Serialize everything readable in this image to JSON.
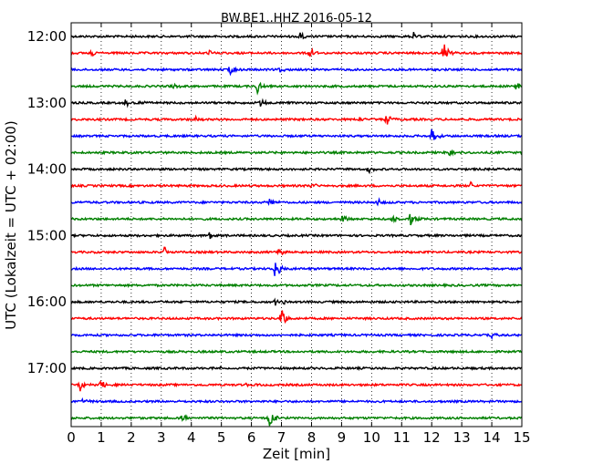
{
  "chart_data": {
    "type": "line",
    "title": "BW.BE1..HHZ 2016-05-12",
    "xlabel": "Zeit  [min]",
    "ylabel": "UTC (Lokalzeit = UTC + 02:00)",
    "xlim": [
      0,
      15
    ],
    "x_ticks": [
      "0",
      "1",
      "2",
      "3",
      "4",
      "5",
      "6",
      "7",
      "8",
      "9",
      "10",
      "11",
      "12",
      "13",
      "14",
      "15"
    ],
    "grid": "vertical dotted",
    "row_interval_min": 15,
    "start_time": "12:00",
    "y_tick_labels": [
      "12:00",
      "13:00",
      "14:00",
      "15:00",
      "16:00",
      "17:00"
    ],
    "colors": [
      "#000000",
      "#ff0000",
      "#0000ff",
      "#008000"
    ],
    "traces": [
      {
        "time": "12:00",
        "events": [
          {
            "t": 7.6,
            "amp": 0.35
          },
          {
            "t": 11.4,
            "amp": 0.3
          }
        ]
      },
      {
        "time": "12:15",
        "events": [
          {
            "t": 0.7,
            "amp": 0.25
          },
          {
            "t": 4.6,
            "amp": 0.2
          },
          {
            "t": 7.9,
            "amp": 0.7
          },
          {
            "t": 12.4,
            "amp": 0.8
          }
        ]
      },
      {
        "time": "12:30",
        "events": [
          {
            "t": 5.3,
            "amp": 0.55
          },
          {
            "t": 6.9,
            "amp": 0.3
          }
        ]
      },
      {
        "time": "12:45",
        "events": [
          {
            "t": 3.4,
            "amp": 0.3
          },
          {
            "t": 6.2,
            "amp": 0.6
          },
          {
            "t": 14.8,
            "amp": 0.6
          }
        ]
      },
      {
        "time": "13:00",
        "events": [
          {
            "t": 1.8,
            "amp": 0.3
          },
          {
            "t": 2.2,
            "amp": 0.3
          },
          {
            "t": 6.3,
            "amp": 0.3
          }
        ]
      },
      {
        "time": "13:15",
        "events": [
          {
            "t": 4.1,
            "amp": 0.25
          },
          {
            "t": 9.6,
            "amp": 0.25
          },
          {
            "t": 10.5,
            "amp": 0.5
          }
        ]
      },
      {
        "time": "13:30",
        "events": [
          {
            "t": 12.0,
            "amp": 0.7
          }
        ]
      },
      {
        "time": "13:45",
        "events": [
          {
            "t": 12.6,
            "amp": 0.25
          }
        ]
      },
      {
        "time": "14:00",
        "events": [
          {
            "t": 9.9,
            "amp": 0.3
          }
        ]
      },
      {
        "time": "14:15",
        "events": [
          {
            "t": 8.0,
            "amp": 0.3
          },
          {
            "t": 13.3,
            "amp": 0.3
          }
        ]
      },
      {
        "time": "14:30",
        "events": [
          {
            "t": 6.6,
            "amp": 0.3
          },
          {
            "t": 10.2,
            "amp": 0.3
          }
        ]
      },
      {
        "time": "14:45",
        "events": [
          {
            "t": 9.0,
            "amp": 0.35
          },
          {
            "t": 10.7,
            "amp": 0.3
          },
          {
            "t": 11.3,
            "amp": 0.55
          }
        ]
      },
      {
        "time": "15:00",
        "events": [
          {
            "t": 4.6,
            "amp": 0.3
          }
        ]
      },
      {
        "time": "15:15",
        "events": [
          {
            "t": 3.1,
            "amp": 0.45
          },
          {
            "t": 6.9,
            "amp": 0.3
          }
        ]
      },
      {
        "time": "15:30",
        "events": [
          {
            "t": 6.8,
            "amp": 1.0
          }
        ]
      },
      {
        "time": "15:45",
        "events": []
      },
      {
        "time": "16:00",
        "events": [
          {
            "t": 6.8,
            "amp": 0.3
          },
          {
            "t": 7.0,
            "amp": 0.3
          }
        ]
      },
      {
        "time": "16:15",
        "events": [
          {
            "t": 7.0,
            "amp": 0.9
          }
        ]
      },
      {
        "time": "16:30",
        "events": [
          {
            "t": 14.0,
            "amp": 0.2
          }
        ]
      },
      {
        "time": "16:45",
        "events": []
      },
      {
        "time": "17:00",
        "events": [
          {
            "t": 5.0,
            "amp": 0.2
          }
        ]
      },
      {
        "time": "17:15",
        "events": [
          {
            "t": 0.3,
            "amp": 0.6
          },
          {
            "t": 1.0,
            "amp": 0.5
          },
          {
            "t": 5.8,
            "amp": 0.2
          }
        ]
      },
      {
        "time": "17:30",
        "events": [
          {
            "t": 0.4,
            "amp": 0.2
          }
        ]
      },
      {
        "time": "17:45",
        "events": [
          {
            "t": 3.7,
            "amp": 0.3
          },
          {
            "t": 6.6,
            "amp": 0.9
          }
        ]
      }
    ]
  }
}
